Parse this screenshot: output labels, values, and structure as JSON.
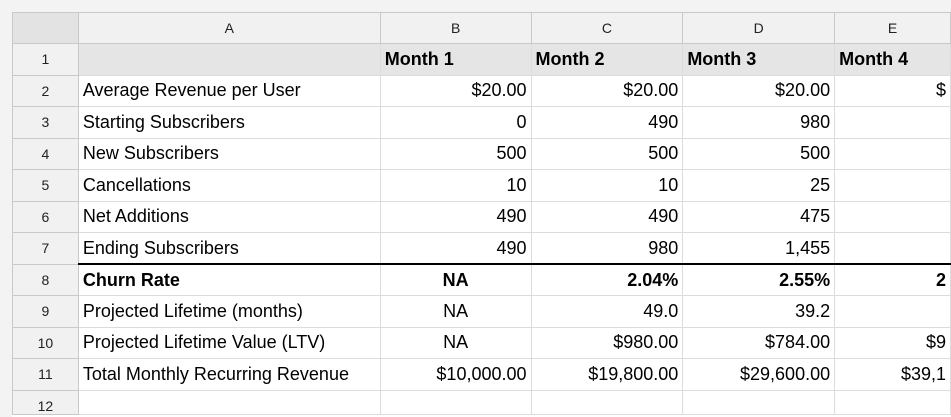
{
  "columns": [
    "A",
    "B",
    "C",
    "D",
    "E"
  ],
  "row_numbers": [
    "1",
    "2",
    "3",
    "4",
    "5",
    "6",
    "7",
    "8",
    "9",
    "10",
    "11",
    "12"
  ],
  "header": [
    "",
    "Month 1",
    "Month 2",
    "Month 3",
    "Month 4"
  ],
  "rows": [
    {
      "label": "Average Revenue per User",
      "values": [
        "$20.00",
        "$20.00",
        "$20.00",
        "$"
      ]
    },
    {
      "label": "Starting Subscribers",
      "values": [
        "0",
        "490",
        "980",
        ""
      ]
    },
    {
      "label": "New Subscribers",
      "values": [
        "500",
        "500",
        "500",
        ""
      ]
    },
    {
      "label": "Cancellations",
      "values": [
        "10",
        "10",
        "25",
        ""
      ]
    },
    {
      "label": "Net Additions",
      "values": [
        "490",
        "490",
        "475",
        ""
      ]
    },
    {
      "label": "Ending Subscribers",
      "values": [
        "490",
        "980",
        "1,455",
        ""
      ]
    },
    {
      "label": "Churn Rate",
      "values": [
        "NA",
        "2.04%",
        "2.55%",
        "2"
      ]
    },
    {
      "label": "Projected Lifetime (months)",
      "values": [
        "NA",
        "49.0",
        "39.2",
        ""
      ]
    },
    {
      "label": "Projected Lifetime Value (LTV)",
      "values": [
        "NA",
        "$980.00",
        "$784.00",
        "$9"
      ]
    },
    {
      "label": "Total Monthly Recurring Revenue",
      "values": [
        "$10,000.00",
        "$19,800.00",
        "$29,600.00",
        "$39,1"
      ]
    }
  ]
}
